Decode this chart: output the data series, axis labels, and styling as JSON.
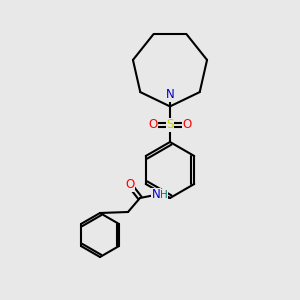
{
  "background_color": "#e8e8e8",
  "bond_color": "#000000",
  "bond_width": 1.5,
  "colors": {
    "N": "#0000cc",
    "O": "#ff0000",
    "S": "#cccc00",
    "H": "#007070",
    "C": "#000000"
  },
  "font_size": 7.5
}
